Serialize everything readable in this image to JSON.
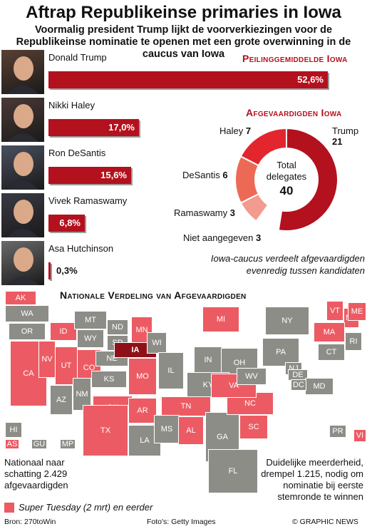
{
  "title": "Aftrap Republikeinse primaries in Iowa",
  "subtitle": "Voormalig president Trump lijkt de voorverkiezingen voor de Republikeinse nominatie te openen met een grote overwinning in de caucus van Iowa",
  "colors": {
    "bar": "#b3111d",
    "super_tuesday": "#ec5b63",
    "other_states": "#8d8d88",
    "iowa": "#8e1118"
  },
  "poll": {
    "heading": "Peilinggemiddelde Iowa",
    "candidates": [
      {
        "name": "Donald Trump",
        "label": "52,6%",
        "value": 52.6,
        "photo": "trump-portrait"
      },
      {
        "name": "Nikki Haley",
        "label": "17,0%",
        "value": 17.0,
        "photo": "haley-portrait"
      },
      {
        "name": "Ron DeSantis",
        "label": "15,6%",
        "value": 15.6,
        "photo": "desantis-portrait"
      },
      {
        "name": "Vivek Ramaswamy",
        "label": "6,8%",
        "value": 6.8,
        "photo": "ramaswamy-portrait"
      },
      {
        "name": "Asa Hutchinson",
        "label": "0,3%",
        "value": 0.3,
        "photo": "hutchinson-portrait"
      }
    ]
  },
  "delegates": {
    "heading": "Afgevaardigden Iowa",
    "center_line1": "Total",
    "center_line2": "delegates",
    "total": "40",
    "slices": [
      {
        "name": "Trump",
        "count": "21",
        "value": 21,
        "color": "#b3111d"
      },
      {
        "name": "Niet aangegeven",
        "count": "3",
        "value": 3,
        "color": "#ffffff"
      },
      {
        "name": "Ramaswamy",
        "count": "3",
        "value": 3,
        "color": "#f29b8f"
      },
      {
        "name": "DeSantis",
        "count": "6",
        "value": 6,
        "color": "#ec6a55"
      },
      {
        "name": "Haley",
        "count": "7",
        "value": 7,
        "color": "#e3262e"
      }
    ],
    "note": "Iowa-caucus verdeelt afgevaardigden evenredig tussen kandidaten"
  },
  "chart_data": [
    {
      "type": "bar",
      "title": "Peilinggemiddelde Iowa",
      "categories": [
        "Donald Trump",
        "Nikki Haley",
        "Ron DeSantis",
        "Vivek Ramaswamy",
        "Asa Hutchinson"
      ],
      "values": [
        52.6,
        17.0,
        15.6,
        6.8,
        0.3
      ]
    },
    {
      "type": "pie",
      "title": "Afgevaardigden Iowa",
      "categories": [
        "Trump",
        "Niet aangegeven",
        "Ramaswamy",
        "DeSantis",
        "Haley"
      ],
      "values": [
        21,
        3,
        3,
        6,
        7
      ]
    }
  ],
  "map": {
    "heading": "Nationale Verdeling van Afgevaardigden",
    "left_note": "Nationaal naar schatting 2.429 afgevaardigden",
    "right_note": "Duidelijke meerderheid, drempel 1.215, nodig om nominatie bij eerste stemronde te winnen",
    "legend": "Super Tuesday (2 mrt) en eerder",
    "states": {
      "AK": "AK",
      "WA": "WA",
      "OR": "OR",
      "CA": "CA",
      "NV": "NV",
      "ID": "ID",
      "UT": "UT",
      "AZ": "AZ",
      "MT": "MT",
      "WY": "WY",
      "CO": "CO",
      "NM": "NM",
      "ND": "ND",
      "SD": "SD",
      "NE": "NE",
      "KS": "KS",
      "OK": "OK",
      "TX": "TX",
      "MN": "MN",
      "IA": "IA",
      "MO": "MO",
      "AR": "AR",
      "LA": "LA",
      "WI": "WI",
      "IL": "IL",
      "MI": "MI",
      "IN": "IN",
      "OH": "OH",
      "KY": "KY",
      "TN": "TN",
      "MS": "MS",
      "AL": "AL",
      "GA": "GA",
      "FL": "FL",
      "SC": "SC",
      "NC": "NC",
      "VA": "VA",
      "WV": "WV",
      "PA": "PA",
      "NY": "NY",
      "VT": "VT",
      "NH": "NH",
      "ME": "ME",
      "MA": "MA",
      "CT": "CT",
      "RI": "RI",
      "NJ": "NJ",
      "DE": "DE",
      "MD": "MD",
      "DC": "DC",
      "HI": "HI",
      "AS": "AS",
      "GU": "GU",
      "MP": "MP",
      "PR": "PR",
      "VI": "VI"
    }
  },
  "footer": {
    "source": "Bron: 270toWin",
    "photos": "Foto's: Getty Images",
    "copyright": "© GRAPHIC NEWS"
  }
}
